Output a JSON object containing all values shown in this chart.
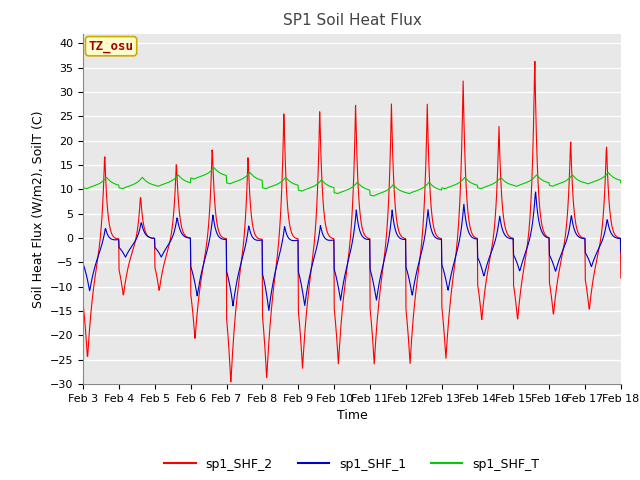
{
  "title": "SP1 Soil Heat Flux",
  "xlabel": "Time",
  "ylabel": "Soil Heat Flux (W/m2), SoilT (C)",
  "ylim": [
    -30,
    42
  ],
  "yticks": [
    -30,
    -25,
    -20,
    -15,
    -10,
    -5,
    0,
    5,
    10,
    15,
    20,
    25,
    30,
    35,
    40
  ],
  "x_tick_labels": [
    "Feb 3",
    "Feb 4",
    "Feb 5",
    "Feb 6",
    "Feb 7",
    "Feb 8",
    "Feb 9",
    "Feb 10",
    "Feb 11",
    "Feb 12",
    "Feb 13",
    "Feb 14",
    "Feb 15",
    "Feb 16",
    "Feb 17",
    "Feb 18"
  ],
  "color_shf2": "#ff0000",
  "color_shf1": "#0000cc",
  "color_shft": "#00cc00",
  "legend_labels": [
    "sp1_SHF_2",
    "sp1_SHF_1",
    "sp1_SHF_T"
  ],
  "annotation_text": "TZ_osu",
  "annotation_color": "#aa0000",
  "annotation_bg": "#ffffcc",
  "annotation_border": "#ccaa00",
  "background_plot": "#e8e8e8",
  "fig_bg": "#ffffff",
  "grid_color": "#ffffff",
  "title_fontsize": 11,
  "axis_label_fontsize": 9,
  "tick_fontsize": 8
}
